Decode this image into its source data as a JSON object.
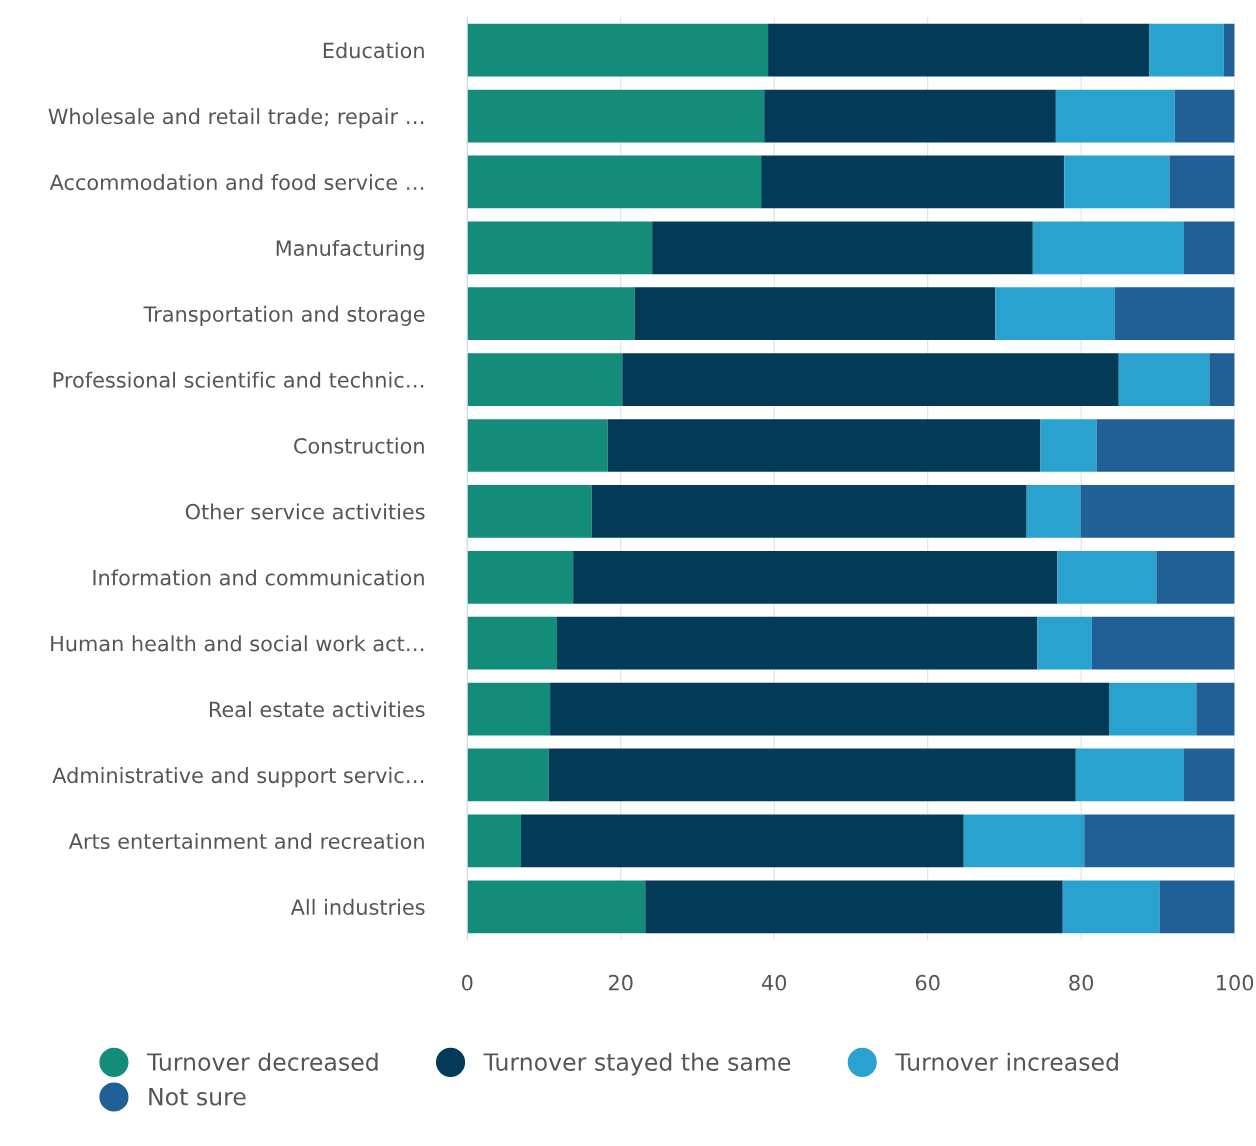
{
  "chart_data": {
    "type": "bar",
    "orientation": "horizontal",
    "stacked": true,
    "categories": [
      "Education",
      "Wholesale and retail trade; repair …",
      "Accommodation and food service …",
      "Manufacturing",
      "Transportation and storage",
      "Professional scientific and technic…",
      "Construction",
      "Other service activities",
      "Information and communication",
      "Human health and social work act…",
      "Real estate activities",
      "Administrative and support servic…",
      "Arts entertainment and recreation",
      "All industries"
    ],
    "series": [
      {
        "name": "Turnover decreased",
        "color": "#138d7a",
        "values": [
          39.2,
          38.7,
          38.3,
          24.1,
          21.8,
          20.2,
          18.3,
          16.2,
          13.8,
          11.7,
          10.8,
          10.6,
          7.0,
          23.2
        ]
      },
      {
        "name": "Turnover stayed the same",
        "color": "#033a57",
        "values": [
          49.7,
          38.0,
          39.5,
          49.6,
          47.0,
          64.7,
          56.4,
          56.7,
          63.1,
          62.6,
          72.9,
          68.7,
          57.7,
          54.4
        ]
      },
      {
        "name": "Turnover increased",
        "color": "#2aa2d0",
        "values": [
          9.7,
          15.5,
          13.7,
          19.7,
          15.6,
          11.8,
          7.3,
          7.0,
          12.9,
          7.1,
          11.3,
          14.1,
          15.7,
          12.6
        ]
      },
      {
        "name": "Not sure",
        "color": "#216097",
        "values": [
          1.4,
          7.8,
          8.5,
          6.6,
          15.6,
          3.3,
          18.0,
          20.1,
          10.2,
          18.6,
          5.0,
          6.6,
          19.6,
          9.8
        ]
      }
    ],
    "xlim": [
      0,
      100
    ],
    "xticks": [
      0,
      20,
      40,
      60,
      80,
      100
    ],
    "grid": "x",
    "legend": "bottom"
  }
}
